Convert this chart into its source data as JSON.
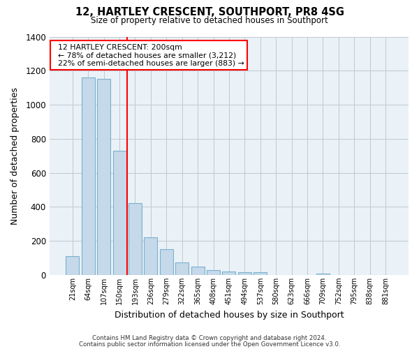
{
  "title": "12, HARTLEY CRESCENT, SOUTHPORT, PR8 4SG",
  "subtitle": "Size of property relative to detached houses in Southport",
  "xlabel": "Distribution of detached houses by size in Southport",
  "ylabel": "Number of detached properties",
  "footer_line1": "Contains HM Land Registry data © Crown copyright and database right 2024.",
  "footer_line2": "Contains public sector information licensed under the Open Government Licence v3.0.",
  "bar_labels": [
    "21sqm",
    "64sqm",
    "107sqm",
    "150sqm",
    "193sqm",
    "236sqm",
    "279sqm",
    "322sqm",
    "365sqm",
    "408sqm",
    "451sqm",
    "494sqm",
    "537sqm",
    "580sqm",
    "623sqm",
    "666sqm",
    "709sqm",
    "752sqm",
    "795sqm",
    "838sqm",
    "881sqm"
  ],
  "bar_values": [
    110,
    1160,
    1150,
    730,
    420,
    220,
    150,
    75,
    50,
    30,
    20,
    15,
    15,
    0,
    0,
    0,
    8,
    0,
    0,
    0,
    0
  ],
  "bar_color": "#c5d9ea",
  "bar_edge_color": "#7ab0cc",
  "red_line_x": 3.5,
  "annotation_title": "12 HARTLEY CRESCENT: 200sqm",
  "annotation_line1": "← 78% of detached houses are smaller (3,212)",
  "annotation_line2": "22% of semi-detached houses are larger (883) →",
  "ylim": [
    0,
    1400
  ],
  "yticks": [
    0,
    200,
    400,
    600,
    800,
    1000,
    1200,
    1400
  ],
  "background_color": "#ffffff",
  "plot_bg_color": "#eaf2f8",
  "grid_color": "#c0c8d0"
}
